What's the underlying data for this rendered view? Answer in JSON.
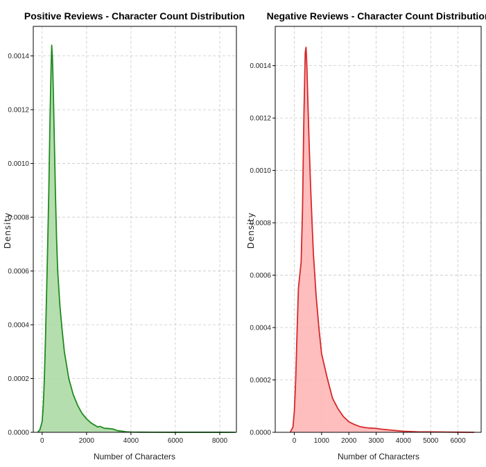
{
  "chart_data": [
    {
      "type": "area",
      "title": "Positive Reviews - Character Count Distribution",
      "xlabel": "Number of Characters",
      "ylabel": "Density",
      "xlim": [
        -400,
        8750
      ],
      "ylim": [
        0,
        0.00151
      ],
      "xticks": [
        0,
        2000,
        4000,
        6000,
        8000
      ],
      "xtick_labels": [
        "0",
        "2000",
        "4000",
        "6000",
        "8000"
      ],
      "yticks": [
        0,
        0.0002,
        0.0004,
        0.0006,
        0.0008,
        0.001,
        0.0012,
        0.0014
      ],
      "ytick_labels": [
        "0.0000",
        "0.0002",
        "0.0004",
        "0.0006",
        "0.0008",
        "0.0010",
        "0.0012",
        "0.0014"
      ],
      "grid": true,
      "color": "#1f8a1f",
      "fill_color": "#a8d8a0",
      "series": [
        {
          "x": [
            -200,
            -100,
            0,
            50,
            100,
            150,
            200,
            250,
            300,
            350,
            400,
            430,
            460,
            500,
            550,
            600,
            650,
            700,
            800,
            900,
            1000,
            1200,
            1400,
            1600,
            1800,
            2000,
            2200,
            2400,
            2500,
            2600,
            2800,
            3000,
            3200,
            3400,
            3600,
            3800,
            4000,
            4500,
            5000,
            6000,
            7000,
            8000,
            8700
          ],
          "y": [
            0,
            1e-05,
            4e-05,
            0.0001,
            0.0002,
            0.00035,
            0.00052,
            0.0007,
            0.0009,
            0.00115,
            0.00135,
            0.00144,
            0.0014,
            0.00128,
            0.00108,
            0.00088,
            0.00072,
            0.0006,
            0.00047,
            0.00038,
            0.0003,
            0.0002,
            0.00014,
            0.0001,
            7e-05,
            5e-05,
            3.5e-05,
            2.5e-05,
            2e-05,
            2.2e-05,
            1.5e-05,
            1.4e-05,
            1.2e-05,
            6e-06,
            4e-06,
            2e-06,
            1e-06,
            5e-07,
            4e-07,
            2e-07,
            1e-07,
            1e-07,
            0
          ]
        }
      ]
    },
    {
      "type": "area",
      "title": "Negative Reviews - Character Count Distribution",
      "xlabel": "Number of Characters",
      "ylabel": "Density",
      "xlim": [
        -700,
        6850
      ],
      "ylim": [
        0,
        0.00155
      ],
      "xticks": [
        0,
        1000,
        2000,
        3000,
        4000,
        5000,
        6000
      ],
      "xtick_labels": [
        "0",
        "1000",
        "2000",
        "3000",
        "4000",
        "5000",
        "6000"
      ],
      "yticks": [
        0,
        0.0002,
        0.0004,
        0.0006,
        0.0008,
        0.001,
        0.0012,
        0.0014
      ],
      "ytick_labels": [
        "0.0000",
        "0.0002",
        "0.0004",
        "0.0006",
        "0.0008",
        "0.0010",
        "0.0012",
        "0.0014"
      ],
      "grid": true,
      "color": "#d62728",
      "fill_color": "#ffb3b3",
      "series": [
        {
          "x": [
            -150,
            -50,
            0,
            50,
            100,
            150,
            200,
            250,
            300,
            350,
            400,
            430,
            460,
            500,
            550,
            600,
            650,
            700,
            800,
            900,
            1000,
            1200,
            1400,
            1600,
            1800,
            2000,
            2200,
            2400,
            2600,
            2800,
            3000,
            3200,
            3400,
            3600,
            3800,
            4000,
            4500,
            5000,
            5500,
            6000,
            6600
          ],
          "y": [
            0,
            2e-05,
            8e-05,
            0.0002,
            0.00038,
            0.00055,
            0.0006,
            0.00065,
            0.00085,
            0.0012,
            0.00145,
            0.00147,
            0.0014,
            0.00125,
            0.00108,
            0.00093,
            0.0008,
            0.00068,
            0.00052,
            0.0004,
            0.0003,
            0.00021,
            0.00013,
            9e-05,
            6e-05,
            4e-05,
            3e-05,
            2.2e-05,
            1.8e-05,
            1.6e-05,
            1.5e-05,
            1.2e-05,
            1e-05,
            8e-06,
            6e-06,
            4e-06,
            2e-06,
            1.5e-06,
            1e-06,
            5e-07,
            0
          ]
        }
      ]
    }
  ]
}
